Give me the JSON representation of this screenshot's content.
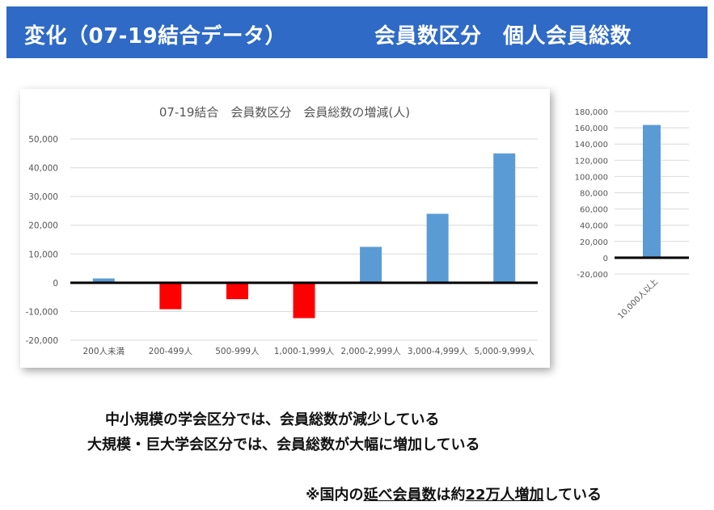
{
  "header": {
    "left": "変化（07-19結合データ）",
    "right": "会員数区分　個人会員総数"
  },
  "chart_data": [
    {
      "type": "bar",
      "title": "07-19結合　会員数区分　会員総数の増減(人)",
      "categories": [
        "200人未満",
        "200-499人",
        "500-999人",
        "1,000-1,999人",
        "2,000-2,999人",
        "3,000-4,999人",
        "5,000-9,999人"
      ],
      "values": [
        1500,
        -9200,
        -5700,
        -12300,
        12500,
        24000,
        45000
      ],
      "ylim": [
        -20000,
        50000
      ],
      "yticks": [
        "-20,000",
        "-10,000",
        "0",
        "10,000",
        "20,000",
        "30,000",
        "40,000",
        "50,000"
      ],
      "positive_color": "#5b9bd5",
      "negative_color": "#ff0000",
      "grid": true
    },
    {
      "type": "bar",
      "categories": [
        "10,000人以上"
      ],
      "values": [
        163500
      ],
      "ylim": [
        -20000,
        180000
      ],
      "yticks": [
        "-20,000",
        "0",
        "20,000",
        "40,000",
        "60,000",
        "80,000",
        "100,000",
        "120,000",
        "140,000",
        "160,000",
        "180,000"
      ],
      "positive_color": "#5b9bd5",
      "grid": true
    }
  ],
  "summary": {
    "line1": "中小規模の学会区分では、会員総数が減少している",
    "line2": "大規模・巨大学会区分では、会員総数が大幅に増加している"
  },
  "note": {
    "part1": "※国内の",
    "part2": "延べ会員数",
    "part3": "は約",
    "part4": "22万人増加",
    "part5": "している"
  }
}
